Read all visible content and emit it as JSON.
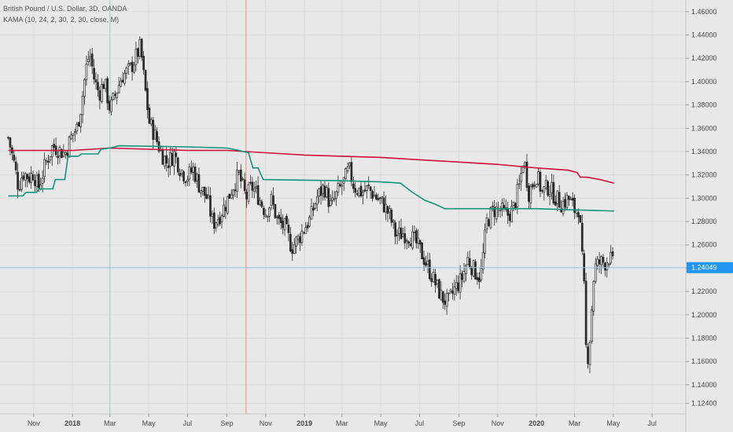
{
  "header": {
    "symbol_title": "British Pound / U.S. Dollar, 3D, OANDA",
    "indicator_label": "KAMA (10, 24, 2, 30, 2, 30, close, M)"
  },
  "colors": {
    "background": "#e8e8e8",
    "grid": "#dcdcdc",
    "candle": "#2b2b2b",
    "kama_fast": "#d0103c",
    "kama_slow": "#10957a",
    "current_price_line": "#9fc3e0",
    "current_price_tag": "#2196f3",
    "vline_green": "#b4d6c8",
    "vline_red": "#e6a8b0"
  },
  "chart_data": {
    "type": "candlestick",
    "title": "British Pound / U.S. Dollar, 3D, OANDA",
    "ylim": [
      1.115,
      1.47
    ],
    "y_ticks": [
      "1.46000",
      "1.44000",
      "1.42000",
      "1.40000",
      "1.38000",
      "1.36000",
      "1.34000",
      "1.32000",
      "1.30000",
      "1.28000",
      "1.26000",
      "1.24000",
      "1.22000",
      "1.20000",
      "1.18000",
      "1.16000",
      "1.14000",
      "1.12400"
    ],
    "x_ticks": [
      {
        "label": "Nov",
        "date": "2017-11-01",
        "bold": false
      },
      {
        "label": "2018",
        "date": "2018-01-01",
        "bold": true
      },
      {
        "label": "Mar",
        "date": "2018-03-01",
        "bold": false
      },
      {
        "label": "May",
        "date": "2018-05-01",
        "bold": false
      },
      {
        "label": "Jul",
        "date": "2018-07-01",
        "bold": false
      },
      {
        "label": "Sep",
        "date": "2018-09-01",
        "bold": false
      },
      {
        "label": "Nov",
        "date": "2018-11-01",
        "bold": false
      },
      {
        "label": "2019",
        "date": "2019-01-01",
        "bold": true
      },
      {
        "label": "Mar",
        "date": "2019-03-01",
        "bold": false
      },
      {
        "label": "May",
        "date": "2019-05-01",
        "bold": false
      },
      {
        "label": "Jul",
        "date": "2019-07-01",
        "bold": false
      },
      {
        "label": "Sep",
        "date": "2019-09-01",
        "bold": false
      },
      {
        "label": "Nov",
        "date": "2019-11-01",
        "bold": false
      },
      {
        "label": "2020",
        "date": "2020-01-01",
        "bold": true
      },
      {
        "label": "Mar",
        "date": "2020-03-01",
        "bold": false
      },
      {
        "label": "May",
        "date": "2020-05-01",
        "bold": false
      },
      {
        "label": "Jul",
        "date": "2020-07-01",
        "bold": false
      }
    ],
    "current_price": "1.24049",
    "current_price_value": 1.24049,
    "vertical_markers": [
      {
        "name": "marker-green",
        "date": "2018-03-01",
        "color_key": "vline_green"
      },
      {
        "name": "marker-red",
        "date": "2018-10-01",
        "color_key": "vline_red"
      }
    ],
    "close_path": [
      [
        "2017-09-22",
        1.352
      ],
      [
        "2017-10-01",
        1.33
      ],
      [
        "2017-10-08",
        1.31
      ],
      [
        "2017-10-15",
        1.322
      ],
      [
        "2017-10-25",
        1.318
      ],
      [
        "2017-11-01",
        1.322
      ],
      [
        "2017-11-08",
        1.308
      ],
      [
        "2017-11-20",
        1.33
      ],
      [
        "2017-12-01",
        1.345
      ],
      [
        "2017-12-10",
        1.342
      ],
      [
        "2017-12-20",
        1.338
      ],
      [
        "2018-01-01",
        1.355
      ],
      [
        "2018-01-08",
        1.36
      ],
      [
        "2018-01-15",
        1.38
      ],
      [
        "2018-01-22",
        1.41
      ],
      [
        "2018-01-28",
        1.425
      ],
      [
        "2018-02-05",
        1.4
      ],
      [
        "2018-02-12",
        1.39
      ],
      [
        "2018-02-20",
        1.4
      ],
      [
        "2018-03-01",
        1.376
      ],
      [
        "2018-03-10",
        1.39
      ],
      [
        "2018-03-20",
        1.405
      ],
      [
        "2018-04-01",
        1.41
      ],
      [
        "2018-04-10",
        1.42
      ],
      [
        "2018-04-18",
        1.43
      ],
      [
        "2018-04-25",
        1.395
      ],
      [
        "2018-05-02",
        1.365
      ],
      [
        "2018-05-10",
        1.355
      ],
      [
        "2018-05-20",
        1.34
      ],
      [
        "2018-05-30",
        1.33
      ],
      [
        "2018-06-10",
        1.338
      ],
      [
        "2018-06-20",
        1.325
      ],
      [
        "2018-06-30",
        1.318
      ],
      [
        "2018-07-10",
        1.325
      ],
      [
        "2018-07-20",
        1.31
      ],
      [
        "2018-08-01",
        1.3
      ],
      [
        "2018-08-10",
        1.278
      ],
      [
        "2018-08-20",
        1.285
      ],
      [
        "2018-08-30",
        1.295
      ],
      [
        "2018-09-10",
        1.31
      ],
      [
        "2018-09-20",
        1.32
      ],
      [
        "2018-10-01",
        1.3
      ],
      [
        "2018-10-10",
        1.31
      ],
      [
        "2018-10-20",
        1.302
      ],
      [
        "2018-11-01",
        1.288
      ],
      [
        "2018-11-10",
        1.298
      ],
      [
        "2018-11-20",
        1.28
      ],
      [
        "2018-12-01",
        1.275
      ],
      [
        "2018-12-12",
        1.258
      ],
      [
        "2018-12-22",
        1.265
      ],
      [
        "2019-01-01",
        1.275
      ],
      [
        "2019-01-10",
        1.282
      ],
      [
        "2019-01-20",
        1.3
      ],
      [
        "2019-02-01",
        1.31
      ],
      [
        "2019-02-12",
        1.292
      ],
      [
        "2019-02-22",
        1.305
      ],
      [
        "2019-03-05",
        1.315
      ],
      [
        "2019-03-12",
        1.325
      ],
      [
        "2019-03-20",
        1.31
      ],
      [
        "2019-04-01",
        1.305
      ],
      [
        "2019-04-12",
        1.308
      ],
      [
        "2019-04-25",
        1.3
      ],
      [
        "2019-05-05",
        1.295
      ],
      [
        "2019-05-15",
        1.285
      ],
      [
        "2019-05-25",
        1.268
      ],
      [
        "2019-06-05",
        1.27
      ],
      [
        "2019-06-15",
        1.268
      ],
      [
        "2019-06-25",
        1.262
      ],
      [
        "2019-07-05",
        1.252
      ],
      [
        "2019-07-15",
        1.24
      ],
      [
        "2019-07-25",
        1.228
      ],
      [
        "2019-08-05",
        1.215
      ],
      [
        "2019-08-15",
        1.21
      ],
      [
        "2019-08-25",
        1.222
      ],
      [
        "2019-09-05",
        1.23
      ],
      [
        "2019-09-15",
        1.248
      ],
      [
        "2019-09-25",
        1.238
      ],
      [
        "2019-10-05",
        1.232
      ],
      [
        "2019-10-15",
        1.28
      ],
      [
        "2019-10-25",
        1.29
      ],
      [
        "2019-11-05",
        1.29
      ],
      [
        "2019-11-15",
        1.285
      ],
      [
        "2019-11-25",
        1.29
      ],
      [
        "2019-12-05",
        1.31
      ],
      [
        "2019-12-12",
        1.335
      ],
      [
        "2019-12-20",
        1.305
      ],
      [
        "2020-01-01",
        1.32
      ],
      [
        "2020-01-10",
        1.305
      ],
      [
        "2020-01-20",
        1.31
      ],
      [
        "2020-02-01",
        1.3
      ],
      [
        "2020-02-10",
        1.295
      ],
      [
        "2020-02-20",
        1.3
      ],
      [
        "2020-03-01",
        1.29
      ],
      [
        "2020-03-08",
        1.292
      ],
      [
        "2020-03-12",
        1.255
      ],
      [
        "2020-03-16",
        1.222
      ],
      [
        "2020-03-20",
        1.155
      ],
      [
        "2020-03-25",
        1.18
      ],
      [
        "2020-04-01",
        1.24
      ],
      [
        "2020-04-10",
        1.245
      ],
      [
        "2020-04-18",
        1.245
      ],
      [
        "2020-04-25",
        1.25
      ],
      [
        "2020-05-02",
        1.24
      ]
    ],
    "series": [
      {
        "name": "KAMA fast",
        "color_key": "kama_fast",
        "points": [
          [
            "2017-09-22",
            1.341
          ],
          [
            "2018-01-01",
            1.341
          ],
          [
            "2018-03-01",
            1.343
          ],
          [
            "2018-05-01",
            1.342
          ],
          [
            "2018-07-01",
            1.341
          ],
          [
            "2018-09-01",
            1.341
          ],
          [
            "2018-11-01",
            1.339
          ],
          [
            "2019-01-01",
            1.337
          ],
          [
            "2019-03-01",
            1.336
          ],
          [
            "2019-05-01",
            1.335
          ],
          [
            "2019-07-01",
            1.333
          ],
          [
            "2019-09-01",
            1.331
          ],
          [
            "2019-11-01",
            1.329
          ],
          [
            "2020-01-01",
            1.326
          ],
          [
            "2020-02-20",
            1.324
          ],
          [
            "2020-03-05",
            1.322
          ],
          [
            "2020-03-10",
            1.318
          ],
          [
            "2020-03-20",
            1.318
          ],
          [
            "2020-04-10",
            1.316
          ],
          [
            "2020-05-02",
            1.313
          ]
        ]
      },
      {
        "name": "KAMA slow",
        "color_key": "kama_slow",
        "points": [
          [
            "2017-09-22",
            1.302
          ],
          [
            "2017-10-15",
            1.302
          ],
          [
            "2017-10-20",
            1.305
          ],
          [
            "2017-11-05",
            1.305
          ],
          [
            "2017-11-10",
            1.308
          ],
          [
            "2017-12-01",
            1.308
          ],
          [
            "2017-12-05",
            1.316
          ],
          [
            "2017-12-20",
            1.316
          ],
          [
            "2017-12-25",
            1.336
          ],
          [
            "2018-01-10",
            1.336
          ],
          [
            "2018-01-15",
            1.338
          ],
          [
            "2018-02-10",
            1.338
          ],
          [
            "2018-02-15",
            1.342
          ],
          [
            "2018-03-01",
            1.343
          ],
          [
            "2018-03-15",
            1.345
          ],
          [
            "2018-07-01",
            1.344
          ],
          [
            "2018-09-01",
            1.343
          ],
          [
            "2018-09-20",
            1.341
          ],
          [
            "2018-10-05",
            1.339
          ],
          [
            "2018-10-12",
            1.326
          ],
          [
            "2018-10-20",
            1.326
          ],
          [
            "2018-10-28",
            1.316
          ],
          [
            "2019-03-01",
            1.315
          ],
          [
            "2019-05-01",
            1.314
          ],
          [
            "2019-06-01",
            1.313
          ],
          [
            "2019-06-20",
            1.305
          ],
          [
            "2019-07-10",
            1.298
          ],
          [
            "2019-07-25",
            1.295
          ],
          [
            "2019-08-10",
            1.291
          ],
          [
            "2019-10-15",
            1.291
          ],
          [
            "2020-01-01",
            1.291
          ],
          [
            "2020-05-02",
            1.289
          ]
        ]
      }
    ]
  }
}
